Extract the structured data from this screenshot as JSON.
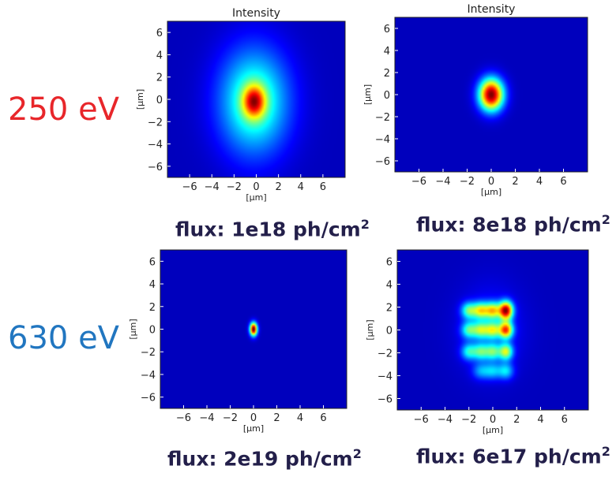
{
  "row_labels": [
    {
      "text": "250 eV",
      "color": "#e8262a"
    },
    {
      "text": "630 eV",
      "color": "#2176c0"
    }
  ],
  "chart_data": [
    {
      "type": "heatmap",
      "title": "Intensity",
      "xlabel": "[μm]",
      "ylabel": "[μm]",
      "xlim": [
        -8,
        8
      ],
      "ylim": [
        -7,
        7
      ],
      "xticks": [
        -6,
        -4,
        -2,
        0,
        2,
        4,
        6
      ],
      "yticks": [
        -6,
        -4,
        -2,
        0,
        2,
        4,
        6
      ],
      "colormap": "jet",
      "background": "#00008f",
      "flux_text": "flux: 1e18 ph/cm",
      "flux_sup": "2",
      "spots": [
        {
          "x": -0.2,
          "y": -0.2,
          "sx": 2.2,
          "sy": 3.3,
          "amp": 0.5
        },
        {
          "x": -0.2,
          "y": -0.2,
          "sx": 0.7,
          "sy": 1.0,
          "amp": 0.65
        }
      ]
    },
    {
      "type": "heatmap",
      "title": "Intensity",
      "xlabel": "[μm]",
      "ylabel": "[μm]",
      "xlim": [
        -8,
        8
      ],
      "ylim": [
        -7,
        7
      ],
      "xticks": [
        -6,
        -4,
        -2,
        0,
        2,
        4,
        6
      ],
      "yticks": [
        -6,
        -4,
        -2,
        0,
        2,
        4,
        6
      ],
      "colormap": "jet",
      "background": "#00008f",
      "flux_text": "flux: 8e18 ph/cm",
      "flux_sup": "2",
      "spots": [
        {
          "x": 0.0,
          "y": 0.0,
          "sx": 0.7,
          "sy": 1.0,
          "amp": 1.0
        }
      ]
    },
    {
      "type": "heatmap",
      "title": "",
      "xlabel": "[μm]",
      "ylabel": "[μm]",
      "xlim": [
        -8,
        8
      ],
      "ylim": [
        -7,
        7
      ],
      "xticks": [
        -6,
        -4,
        -2,
        0,
        2,
        4,
        6
      ],
      "yticks": [
        -6,
        -4,
        -2,
        0,
        2,
        4,
        6
      ],
      "colormap": "jet",
      "background": "#00008f",
      "flux_text": "flux: 2e19 ph/cm",
      "flux_sup": "2",
      "spots": [
        {
          "x": 0.0,
          "y": 0.0,
          "sx": 0.22,
          "sy": 0.4,
          "amp": 1.0
        }
      ]
    },
    {
      "type": "heatmap",
      "title": "",
      "xlabel": "[μm]",
      "ylabel": "[μm]",
      "xlim": [
        -8,
        8
      ],
      "ylim": [
        -7,
        7
      ],
      "xticks": [
        -6,
        -4,
        -2,
        0,
        2,
        4,
        6
      ],
      "yticks": [
        -6,
        -4,
        -2,
        0,
        2,
        4,
        6
      ],
      "colormap": "jet",
      "background": "#00008f",
      "flux_text": "flux: 6e17 ph/cm",
      "flux_sup": "2",
      "spots": [
        {
          "x": -2.0,
          "y": 1.7,
          "sx": 0.45,
          "sy": 0.5,
          "amp": 0.45
        },
        {
          "x": -1.0,
          "y": 1.7,
          "sx": 0.45,
          "sy": 0.5,
          "amp": 0.55
        },
        {
          "x": 0.0,
          "y": 1.7,
          "sx": 0.45,
          "sy": 0.5,
          "amp": 0.6
        },
        {
          "x": 1.1,
          "y": 1.7,
          "sx": 0.4,
          "sy": 0.55,
          "amp": 1.0
        },
        {
          "x": -2.0,
          "y": 0.0,
          "sx": 0.45,
          "sy": 0.5,
          "amp": 0.4
        },
        {
          "x": -1.0,
          "y": 0.0,
          "sx": 0.45,
          "sy": 0.5,
          "amp": 0.45
        },
        {
          "x": 0.0,
          "y": 0.0,
          "sx": 0.45,
          "sy": 0.5,
          "amp": 0.5
        },
        {
          "x": 1.1,
          "y": 0.0,
          "sx": 0.4,
          "sy": 0.5,
          "amp": 0.8
        },
        {
          "x": -2.0,
          "y": -1.9,
          "sx": 0.45,
          "sy": 0.5,
          "amp": 0.35
        },
        {
          "x": -1.0,
          "y": -1.9,
          "sx": 0.45,
          "sy": 0.5,
          "amp": 0.38
        },
        {
          "x": 0.0,
          "y": -1.9,
          "sx": 0.45,
          "sy": 0.5,
          "amp": 0.4
        },
        {
          "x": 1.1,
          "y": -1.9,
          "sx": 0.4,
          "sy": 0.5,
          "amp": 0.55
        },
        {
          "x": -1.0,
          "y": -3.6,
          "sx": 0.5,
          "sy": 0.5,
          "amp": 0.22
        },
        {
          "x": 0.0,
          "y": -3.6,
          "sx": 0.5,
          "sy": 0.5,
          "amp": 0.25
        },
        {
          "x": 1.1,
          "y": -3.6,
          "sx": 0.45,
          "sy": 0.5,
          "amp": 0.3
        },
        {
          "x": -0.2,
          "y": 0.0,
          "sx": 1.8,
          "sy": 2.6,
          "amp": 0.12
        }
      ]
    }
  ]
}
